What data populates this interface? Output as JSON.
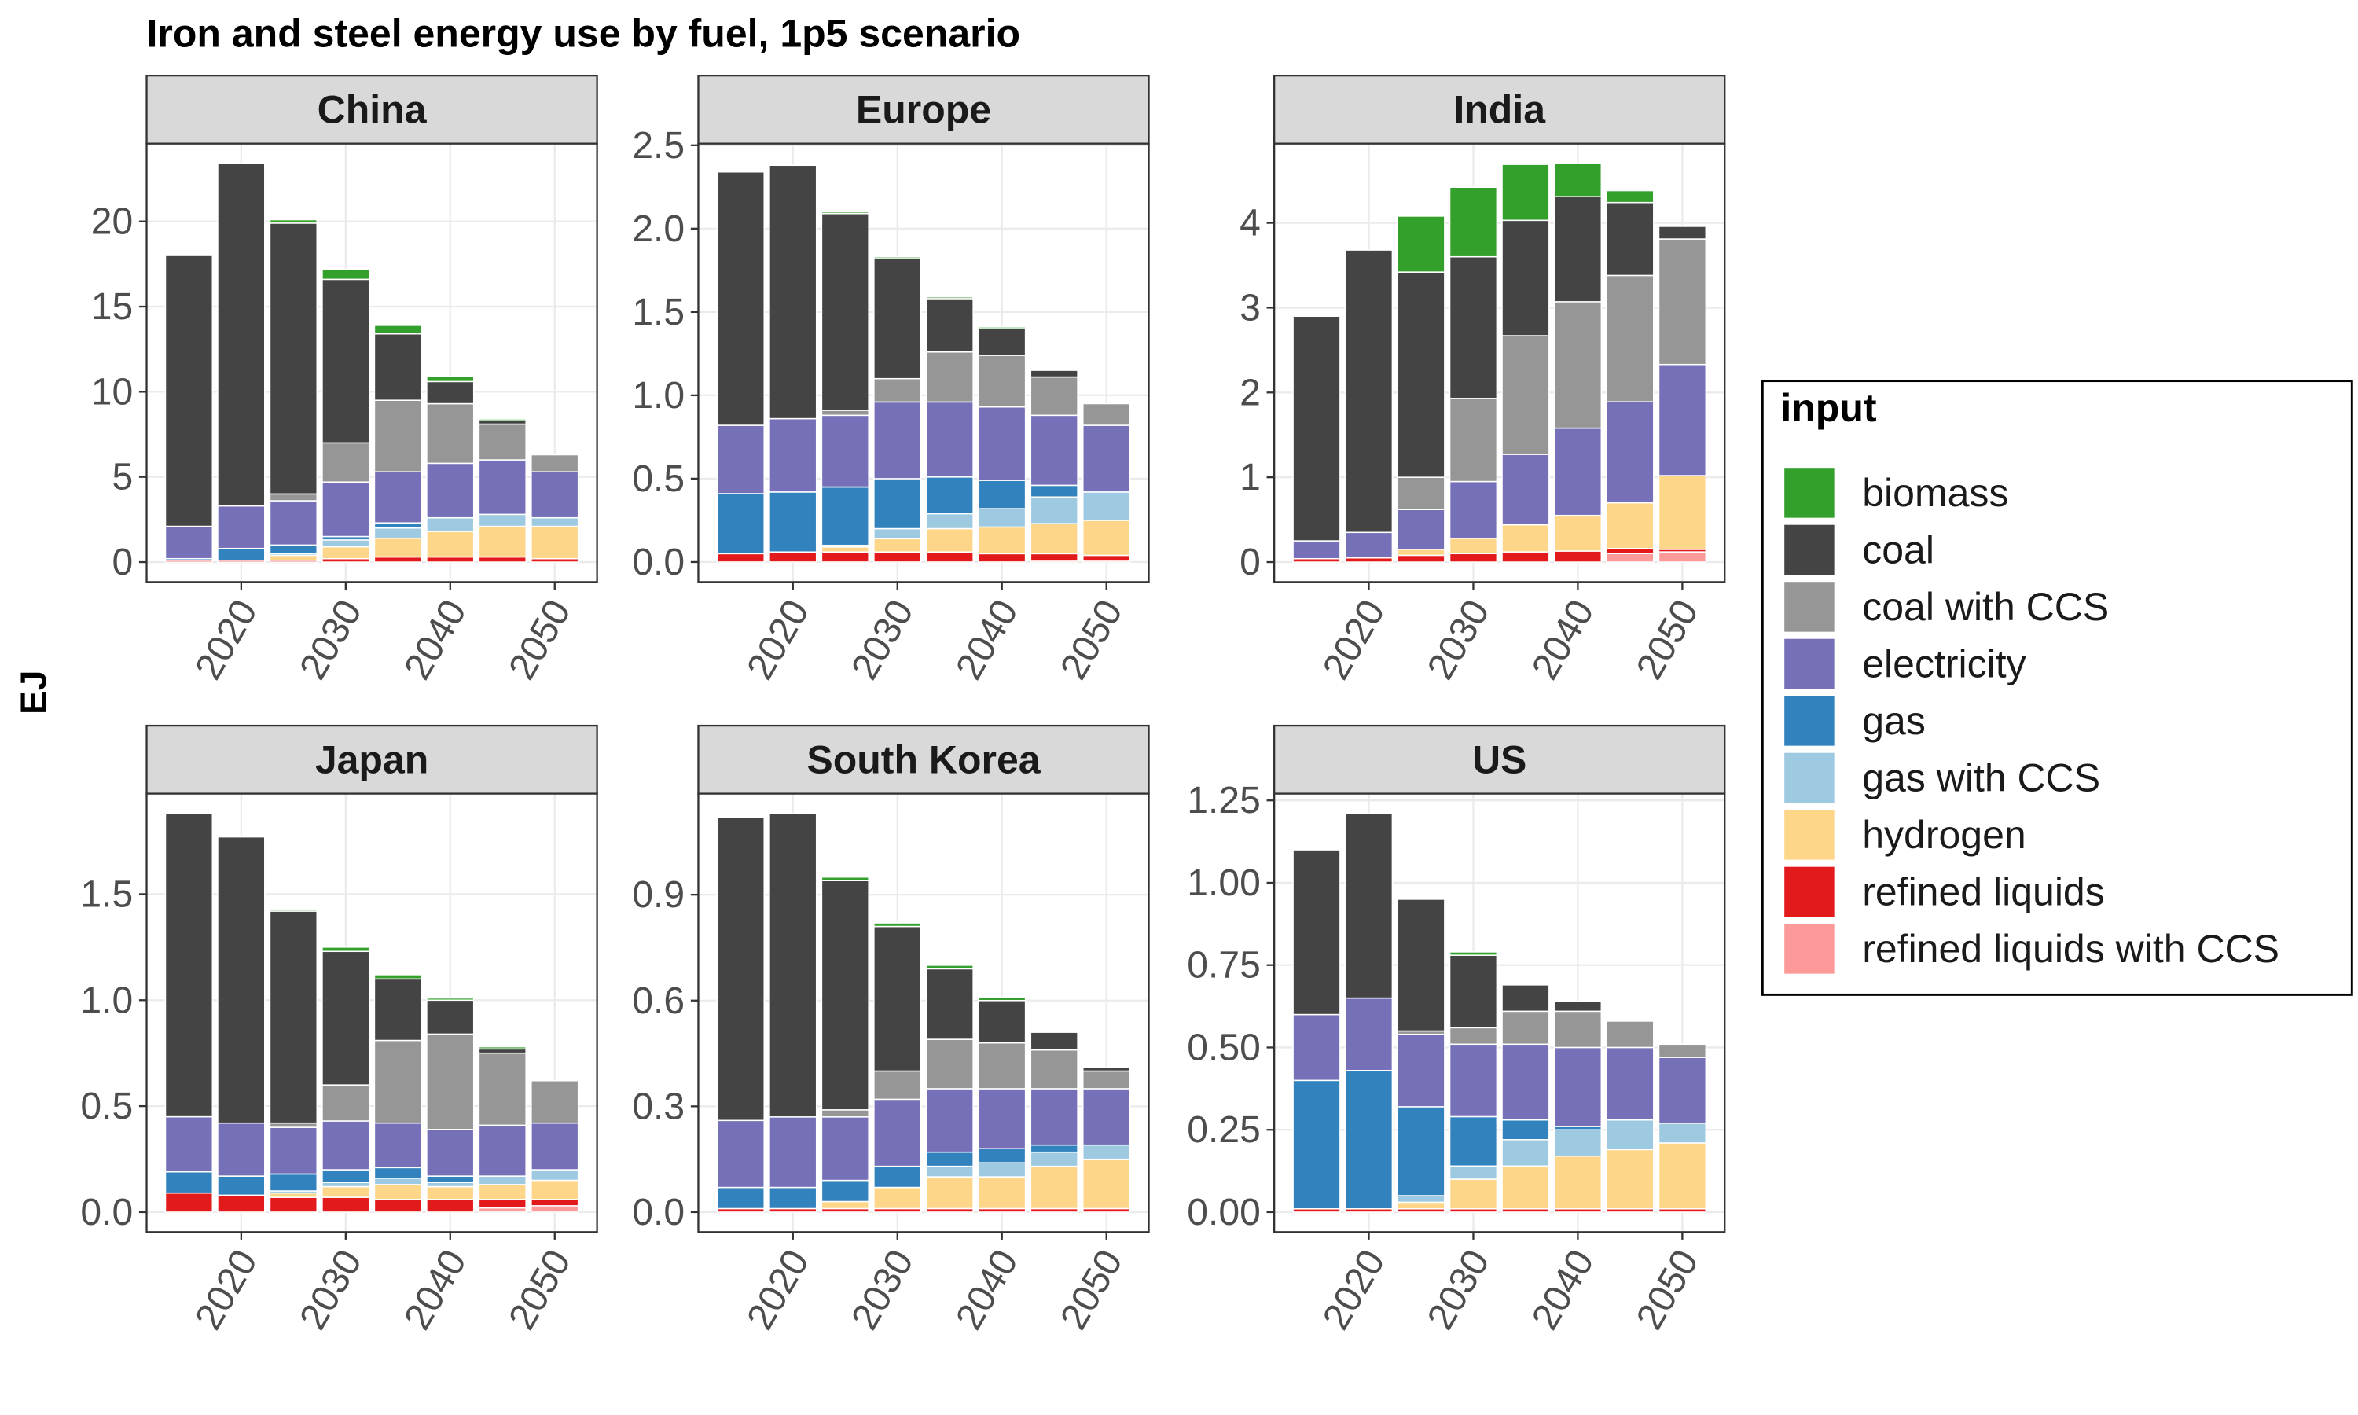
{
  "title": "Iron and steel energy use by fuel, 1p5 scenario",
  "ylabel": "EJ",
  "legend_title": "input",
  "chart_data": [
    {
      "type": "bar",
      "stacked": true,
      "grid": true,
      "title": "China",
      "x": [
        2015,
        2020,
        2025,
        2030,
        2035,
        2040,
        2045,
        2050
      ],
      "xlim": [
        2010.95,
        2054.05
      ],
      "xticks": [
        2020,
        2030,
        2040,
        2050
      ],
      "ylim": [
        -1.17,
        24.57
      ],
      "yticks": [
        0,
        5,
        10,
        15,
        20
      ],
      "series": [
        {
          "name": "biomass",
          "color": "#33a02c",
          "values": [
            0,
            0,
            0.2,
            0.6,
            0.5,
            0.3,
            0.1,
            0
          ]
        },
        {
          "name": "coal",
          "color": "#444444",
          "values": [
            15.9,
            20.1,
            15.9,
            9.6,
            3.9,
            1.3,
            0.2,
            0
          ]
        },
        {
          "name": "coal with CCS",
          "color": "#969696",
          "values": [
            0,
            0,
            0.4,
            2.3,
            4.2,
            3.5,
            2.1,
            1.0
          ]
        },
        {
          "name": "electricity",
          "color": "#7570b8",
          "values": [
            1.9,
            2.5,
            2.6,
            3.2,
            3.0,
            3.2,
            3.2,
            2.7
          ]
        },
        {
          "name": "gas",
          "color": "#3182bd",
          "values": [
            0.1,
            0.7,
            0.5,
            0.2,
            0.3,
            0,
            0,
            0
          ]
        },
        {
          "name": "gas with CCS",
          "color": "#9ecae1",
          "values": [
            0,
            0,
            0.1,
            0.4,
            0.6,
            0.8,
            0.7,
            0.5
          ]
        },
        {
          "name": "hydrogen",
          "color": "#fdd68a",
          "values": [
            0,
            0,
            0.3,
            0.7,
            1.1,
            1.5,
            1.8,
            1.9
          ]
        },
        {
          "name": "refined liquids",
          "color": "#e31a1c",
          "values": [
            0.1,
            0.1,
            0.1,
            0.2,
            0.3,
            0.3,
            0.3,
            0.2
          ]
        },
        {
          "name": "refined liquids with CCS",
          "color": "#fb9a99",
          "values": [
            0,
            0,
            0,
            0,
            0,
            0,
            0,
            0
          ]
        }
      ]
    },
    {
      "type": "bar",
      "stacked": true,
      "grid": true,
      "title": "Europe",
      "x": [
        2015,
        2020,
        2025,
        2030,
        2035,
        2040,
        2045,
        2050
      ],
      "xlim": [
        2010.95,
        2054.05
      ],
      "xticks": [
        2020,
        2030,
        2040,
        2050
      ],
      "ylim": [
        -0.12,
        2.51
      ],
      "yticks": [
        {
          "value": 0,
          "label": "0.0"
        },
        0.5,
        {
          "value": 1,
          "label": "1.0"
        },
        1.5,
        {
          "value": 2,
          "label": "2.0"
        },
        2.5
      ],
      "series": [
        {
          "name": "biomass",
          "color": "#33a02c",
          "values": [
            0,
            0,
            0.01,
            0.01,
            0.01,
            0.01,
            0,
            0
          ]
        },
        {
          "name": "coal",
          "color": "#444444",
          "values": [
            1.52,
            1.52,
            1.18,
            0.72,
            0.32,
            0.16,
            0.04,
            0
          ]
        },
        {
          "name": "coal with CCS",
          "color": "#969696",
          "values": [
            0,
            0,
            0.03,
            0.14,
            0.3,
            0.31,
            0.23,
            0.13
          ]
        },
        {
          "name": "electricity",
          "color": "#7570b8",
          "values": [
            0.41,
            0.44,
            0.43,
            0.46,
            0.45,
            0.44,
            0.42,
            0.4
          ]
        },
        {
          "name": "gas",
          "color": "#3182bd",
          "values": [
            0.36,
            0.36,
            0.35,
            0.3,
            0.22,
            0.17,
            0.07,
            0
          ]
        },
        {
          "name": "gas with CCS",
          "color": "#9ecae1",
          "values": [
            0,
            0,
            0.01,
            0.06,
            0.09,
            0.11,
            0.16,
            0.17
          ]
        },
        {
          "name": "hydrogen",
          "color": "#fdd68a",
          "values": [
            0,
            0,
            0.03,
            0.08,
            0.14,
            0.16,
            0.18,
            0.21
          ]
        },
        {
          "name": "refined liquids",
          "color": "#e31a1c",
          "values": [
            0.05,
            0.06,
            0.06,
            0.06,
            0.06,
            0.05,
            0.04,
            0.03
          ]
        },
        {
          "name": "refined liquids with CCS",
          "color": "#fb9a99",
          "values": [
            0,
            0,
            0,
            0,
            0,
            0,
            0.01,
            0.01
          ]
        }
      ]
    },
    {
      "type": "bar",
      "stacked": true,
      "grid": true,
      "title": "India",
      "x": [
        2015,
        2020,
        2025,
        2030,
        2035,
        2040,
        2045,
        2050
      ],
      "xlim": [
        2010.95,
        2054.05
      ],
      "xticks": [
        2020,
        2030,
        2040,
        2050
      ],
      "ylim": [
        -0.235,
        4.935
      ],
      "yticks": [
        0,
        1,
        2,
        3,
        4
      ],
      "series": [
        {
          "name": "biomass",
          "color": "#33a02c",
          "values": [
            0,
            0,
            0.66,
            0.82,
            0.66,
            0.39,
            0.14,
            0.01
          ]
        },
        {
          "name": "coal",
          "color": "#444444",
          "values": [
            2.65,
            3.33,
            2.42,
            1.67,
            1.36,
            1.24,
            0.86,
            0.15
          ]
        },
        {
          "name": "coal with CCS",
          "color": "#969696",
          "values": [
            0,
            0,
            0.38,
            0.98,
            1.4,
            1.49,
            1.49,
            1.48
          ]
        },
        {
          "name": "electricity",
          "color": "#7570b8",
          "values": [
            0.21,
            0.3,
            0.47,
            0.67,
            0.83,
            1.03,
            1.19,
            1.31
          ]
        },
        {
          "name": "gas",
          "color": "#3182bd",
          "values": [
            0,
            0,
            0,
            0,
            0,
            0,
            0,
            0
          ]
        },
        {
          "name": "gas with CCS",
          "color": "#9ecae1",
          "values": [
            0,
            0,
            0,
            0,
            0,
            0,
            0,
            0
          ]
        },
        {
          "name": "hydrogen",
          "color": "#fdd68a",
          "values": [
            0,
            0,
            0.07,
            0.18,
            0.32,
            0.42,
            0.54,
            0.87
          ]
        },
        {
          "name": "refined liquids",
          "color": "#e31a1c",
          "values": [
            0.04,
            0.05,
            0.08,
            0.1,
            0.12,
            0.13,
            0.06,
            0.03
          ]
        },
        {
          "name": "refined liquids with CCS",
          "color": "#fb9a99",
          "values": [
            0,
            0,
            0,
            0,
            0,
            0,
            0.1,
            0.12
          ]
        }
      ]
    },
    {
      "type": "bar",
      "stacked": true,
      "grid": true,
      "title": "Japan",
      "x": [
        2015,
        2020,
        2025,
        2030,
        2035,
        2040,
        2045,
        2050
      ],
      "xlim": [
        2010.95,
        2054.05
      ],
      "xticks": [
        2020,
        2030,
        2040,
        2050
      ],
      "ylim": [
        -0.094,
        1.974
      ],
      "yticks": [
        {
          "value": 0,
          "label": "0.0"
        },
        0.5,
        {
          "value": 1,
          "label": "1.0"
        },
        1.5
      ],
      "series": [
        {
          "name": "biomass",
          "color": "#33a02c",
          "values": [
            0,
            0,
            0.01,
            0.02,
            0.02,
            0.01,
            0.01,
            0
          ]
        },
        {
          "name": "coal",
          "color": "#444444",
          "values": [
            1.43,
            1.35,
            1.0,
            0.63,
            0.29,
            0.16,
            0.02,
            0
          ]
        },
        {
          "name": "coal with CCS",
          "color": "#969696",
          "values": [
            0,
            0,
            0.02,
            0.17,
            0.39,
            0.45,
            0.34,
            0.2
          ]
        },
        {
          "name": "electricity",
          "color": "#7570b8",
          "values": [
            0.26,
            0.25,
            0.22,
            0.23,
            0.21,
            0.22,
            0.24,
            0.22
          ]
        },
        {
          "name": "gas",
          "color": "#3182bd",
          "values": [
            0.1,
            0.09,
            0.08,
            0.06,
            0.05,
            0.03,
            0,
            0
          ]
        },
        {
          "name": "gas with CCS",
          "color": "#9ecae1",
          "values": [
            0,
            0,
            0.01,
            0.02,
            0.03,
            0.02,
            0.04,
            0.05
          ]
        },
        {
          "name": "hydrogen",
          "color": "#fdd68a",
          "values": [
            0,
            0,
            0.02,
            0.05,
            0.07,
            0.06,
            0.07,
            0.09
          ]
        },
        {
          "name": "refined liquids",
          "color": "#e31a1c",
          "values": [
            0.09,
            0.08,
            0.07,
            0.07,
            0.06,
            0.06,
            0.04,
            0.03
          ]
        },
        {
          "name": "refined liquids with CCS",
          "color": "#fb9a99",
          "values": [
            0,
            0,
            0,
            0,
            0,
            0,
            0.02,
            0.03
          ]
        }
      ]
    },
    {
      "type": "bar",
      "stacked": true,
      "grid": true,
      "title": "South Korea",
      "x": [
        2015,
        2020,
        2025,
        2030,
        2035,
        2040,
        2045,
        2050
      ],
      "xlim": [
        2010.95,
        2054.05
      ],
      "xticks": [
        2020,
        2030,
        2040,
        2050
      ],
      "ylim": [
        -0.0565,
        1.1865
      ],
      "yticks": [
        {
          "value": 0,
          "label": "0.0"
        },
        0.3,
        0.6,
        0.9
      ],
      "series": [
        {
          "name": "biomass",
          "color": "#33a02c",
          "values": [
            0,
            0,
            0.01,
            0.01,
            0.01,
            0.01,
            0,
            0
          ]
        },
        {
          "name": "coal",
          "color": "#444444",
          "values": [
            0.86,
            0.86,
            0.65,
            0.41,
            0.2,
            0.12,
            0.05,
            0.01
          ]
        },
        {
          "name": "coal with CCS",
          "color": "#969696",
          "values": [
            0,
            0,
            0.02,
            0.08,
            0.14,
            0.13,
            0.11,
            0.05
          ]
        },
        {
          "name": "electricity",
          "color": "#7570b8",
          "values": [
            0.19,
            0.2,
            0.18,
            0.19,
            0.18,
            0.17,
            0.16,
            0.16
          ]
        },
        {
          "name": "gas",
          "color": "#3182bd",
          "values": [
            0.06,
            0.06,
            0.06,
            0.06,
            0.04,
            0.04,
            0.02,
            0
          ]
        },
        {
          "name": "gas with CCS",
          "color": "#9ecae1",
          "values": [
            0,
            0,
            0,
            0,
            0.03,
            0.04,
            0.04,
            0.04
          ]
        },
        {
          "name": "hydrogen",
          "color": "#fdd68a",
          "values": [
            0,
            0,
            0.02,
            0.06,
            0.09,
            0.09,
            0.12,
            0.14
          ]
        },
        {
          "name": "refined liquids",
          "color": "#e31a1c",
          "values": [
            0.01,
            0.01,
            0.01,
            0.01,
            0.01,
            0.01,
            0.01,
            0.01
          ]
        },
        {
          "name": "refined liquids with CCS",
          "color": "#fb9a99",
          "values": [
            0,
            0,
            0,
            0,
            0,
            0,
            0,
            0
          ]
        }
      ]
    },
    {
      "type": "bar",
      "stacked": true,
      "grid": true,
      "title": "US",
      "x": [
        2015,
        2020,
        2025,
        2030,
        2035,
        2040,
        2045,
        2050
      ],
      "xlim": [
        2010.95,
        2054.05
      ],
      "xticks": [
        2020,
        2030,
        2040,
        2050
      ],
      "ylim": [
        -0.0605,
        1.2705
      ],
      "yticks": [
        {
          "value": 0,
          "label": "0.00"
        },
        0.25,
        {
          "value": 0.5,
          "label": "0.50"
        },
        0.75,
        {
          "value": 1,
          "label": "1.00"
        },
        1.25
      ],
      "series": [
        {
          "name": "biomass",
          "color": "#33a02c",
          "values": [
            0,
            0,
            0,
            0.01,
            0,
            0,
            0,
            0
          ]
        },
        {
          "name": "coal",
          "color": "#444444",
          "values": [
            0.5,
            0.56,
            0.4,
            0.22,
            0.08,
            0.03,
            0,
            0
          ]
        },
        {
          "name": "coal with CCS",
          "color": "#969696",
          "values": [
            0,
            0,
            0.01,
            0.05,
            0.1,
            0.11,
            0.08,
            0.04
          ]
        },
        {
          "name": "electricity",
          "color": "#7570b8",
          "values": [
            0.2,
            0.22,
            0.22,
            0.22,
            0.23,
            0.24,
            0.22,
            0.2
          ]
        },
        {
          "name": "gas",
          "color": "#3182bd",
          "values": [
            0.39,
            0.42,
            0.27,
            0.15,
            0.06,
            0.01,
            0,
            0
          ]
        },
        {
          "name": "gas with CCS",
          "color": "#9ecae1",
          "values": [
            0,
            0,
            0.02,
            0.04,
            0.08,
            0.08,
            0.09,
            0.06
          ]
        },
        {
          "name": "hydrogen",
          "color": "#fdd68a",
          "values": [
            0,
            0,
            0.02,
            0.09,
            0.13,
            0.16,
            0.18,
            0.2
          ]
        },
        {
          "name": "refined liquids",
          "color": "#e31a1c",
          "values": [
            0.01,
            0.01,
            0.01,
            0.01,
            0.01,
            0.01,
            0.01,
            0.01
          ]
        },
        {
          "name": "refined liquids with CCS",
          "color": "#fb9a99",
          "values": [
            0,
            0,
            0,
            0,
            0,
            0,
            0,
            0
          ]
        }
      ]
    }
  ]
}
